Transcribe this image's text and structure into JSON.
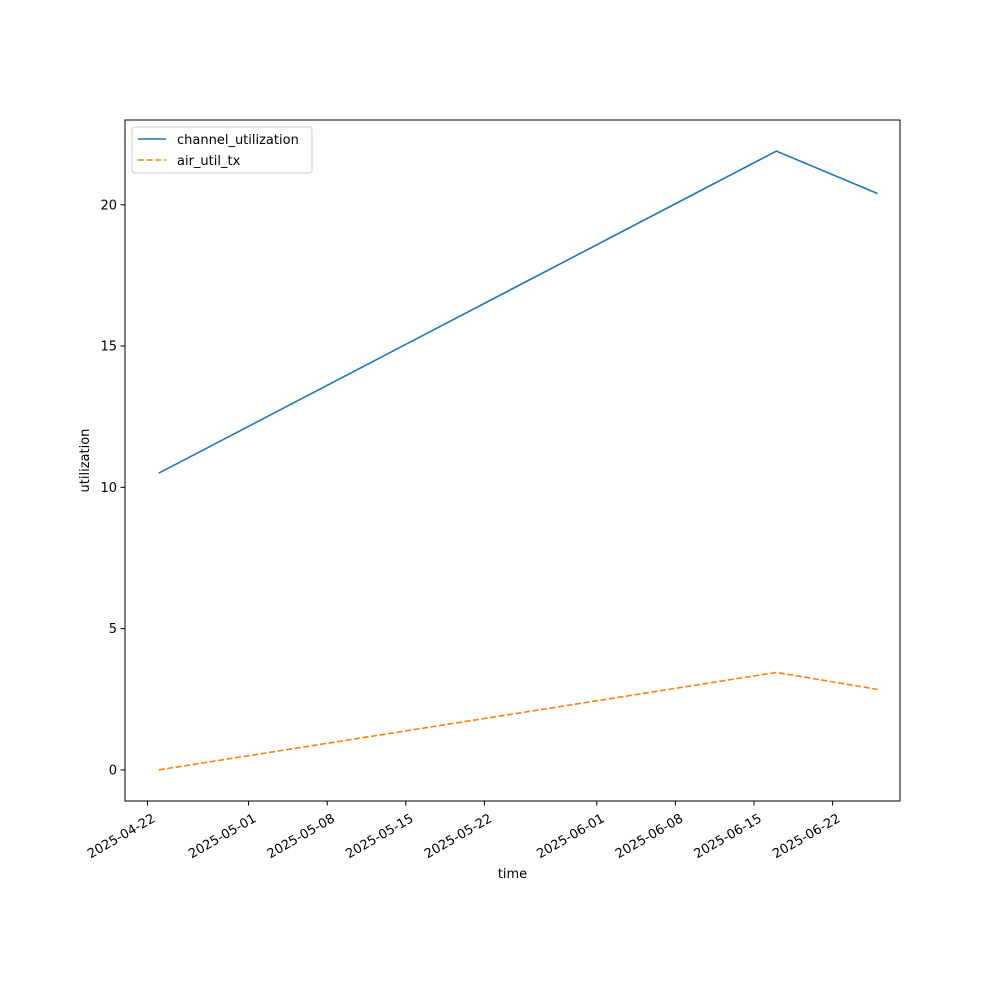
{
  "chart_data": {
    "type": "line",
    "title": "",
    "xlabel": "time",
    "ylabel": "utilization",
    "x_scale": "date",
    "xlim": [
      "2025-04-20",
      "2025-06-28"
    ],
    "ylim": [
      -1.1,
      23.0
    ],
    "x_ticks": [
      "2025-04-22",
      "2025-05-01",
      "2025-05-08",
      "2025-05-15",
      "2025-05-22",
      "2025-06-01",
      "2025-06-08",
      "2025-06-15",
      "2025-06-22"
    ],
    "y_ticks": [
      0,
      5,
      10,
      15,
      20
    ],
    "grid": false,
    "legend": "top-left",
    "series": [
      {
        "name": "channel_utilization",
        "color": "#1f77b4",
        "style": "solid",
        "points": [
          {
            "x": "2025-04-23",
            "y": 10.5
          },
          {
            "x": "2025-06-17",
            "y": 21.9
          },
          {
            "x": "2025-06-26",
            "y": 20.4
          }
        ]
      },
      {
        "name": "air_util_tx",
        "color": "#ff7f0e",
        "style": "dashed",
        "points": [
          {
            "x": "2025-04-23",
            "y": 0.0
          },
          {
            "x": "2025-06-17",
            "y": 3.45
          },
          {
            "x": "2025-06-26",
            "y": 2.85
          }
        ]
      }
    ]
  }
}
